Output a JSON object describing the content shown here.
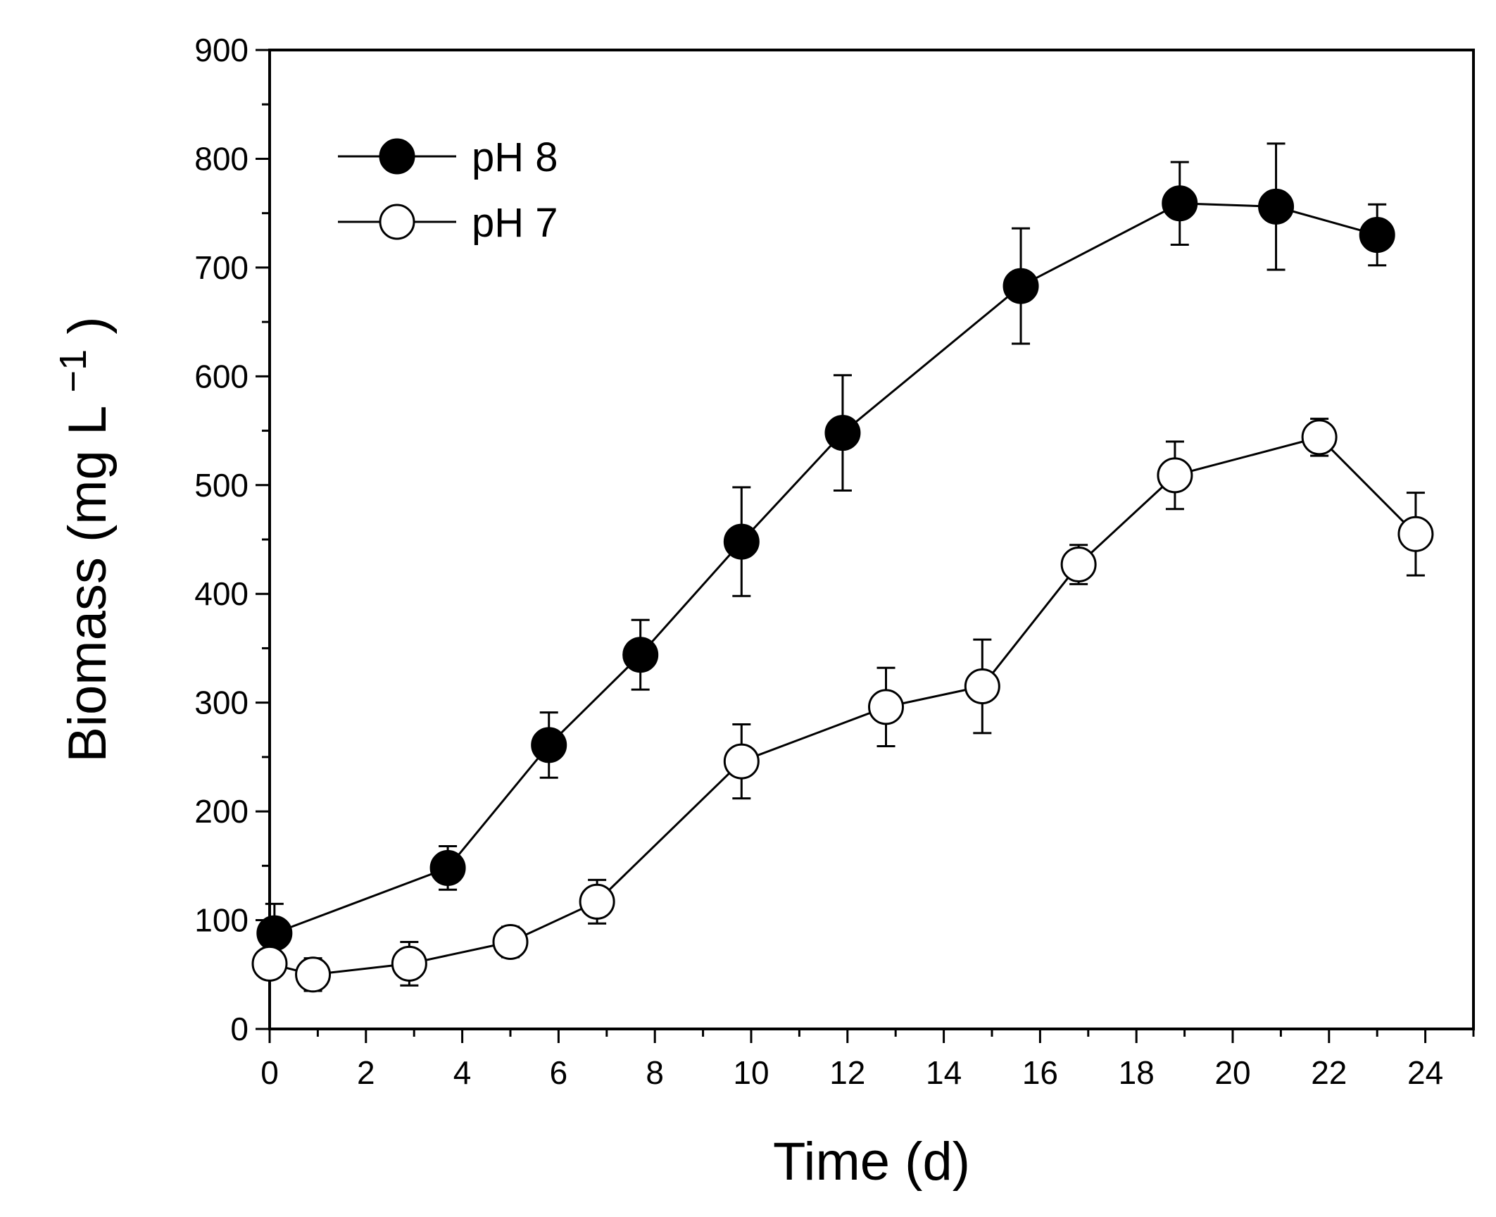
{
  "chart_data": {
    "type": "line",
    "title": "",
    "xlabel": "Time (d)",
    "ylabel": "Biomass (mg L",
    "ylabel_superscript": "−1",
    "ylabel_close": ")",
    "xlim": [
      0,
      25
    ],
    "ylim": [
      0,
      900
    ],
    "xticks": [
      0,
      2,
      4,
      6,
      8,
      10,
      12,
      14,
      16,
      18,
      20,
      22,
      24
    ],
    "yticks": [
      0,
      100,
      200,
      300,
      400,
      500,
      600,
      700,
      800,
      900
    ],
    "grid": false,
    "legend_position": "top-left",
    "series": [
      {
        "name": "pH 8",
        "marker": "filled-circle",
        "x": [
          0.1,
          3.7,
          5.8,
          7.7,
          9.8,
          11.9,
          15.6,
          18.9,
          20.9,
          23.0
        ],
        "y": [
          88,
          148,
          261,
          344,
          448,
          548,
          683,
          759,
          756,
          730
        ],
        "err": [
          27,
          20,
          30,
          32,
          50,
          53,
          53,
          38,
          58,
          28
        ]
      },
      {
        "name": "pH 7",
        "marker": "open-circle",
        "x": [
          0.0,
          0.9,
          2.9,
          5.0,
          6.8,
          9.8,
          12.8,
          14.8,
          16.8,
          18.8,
          21.8,
          23.8
        ],
        "y": [
          60,
          50,
          60,
          80,
          117,
          246,
          296,
          315,
          427,
          509,
          544,
          455
        ],
        "err": [
          12,
          15,
          20,
          14,
          20,
          34,
          36,
          43,
          18,
          31,
          17,
          38
        ]
      }
    ]
  }
}
